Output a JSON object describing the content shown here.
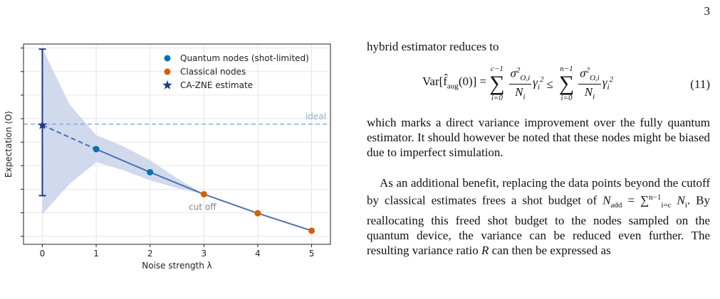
{
  "page": {
    "number": "3"
  },
  "figure": {
    "chart_data": {
      "type": "line",
      "xlabel": "Noise strength λ",
      "ylabel": "Expectation ⟨O⟩",
      "xlim": [
        -0.35,
        5.35
      ],
      "ylim": [
        0.0,
        1.0
      ],
      "x_ticks": [
        0,
        1,
        2,
        3,
        4,
        5
      ],
      "grid": true,
      "legend": "top-right",
      "ideal": {
        "label": "ideal",
        "y": 0.6
      },
      "cutoff": {
        "label": "cut off",
        "x": 3
      },
      "series": [
        {
          "name": "Quantum nodes (shot-limited)",
          "color": "#0072b2",
          "x": [
            1,
            2
          ],
          "y": [
            0.475,
            0.36
          ]
        },
        {
          "name": "Classical nodes",
          "color": "#d55e00",
          "x": [
            3,
            4,
            5
          ],
          "y": [
            0.25,
            0.155,
            0.068
          ]
        },
        {
          "name": "CA-ZNE estimate",
          "color": "#1f3b8c",
          "x": [
            0
          ],
          "y": [
            0.595
          ],
          "error": 0.345
        }
      ],
      "fit_line": {
        "x": [
          0,
          1,
          2,
          3,
          4,
          5
        ],
        "y": [
          0.595,
          0.475,
          0.36,
          0.25,
          0.155,
          0.068
        ]
      },
      "band": {
        "x": [
          0,
          0.5,
          1,
          1.5,
          2,
          2.5,
          3,
          4,
          5
        ],
        "upper": [
          0.98,
          0.7,
          0.545,
          0.49,
          0.42,
          0.33,
          0.25,
          0.155,
          0.068
        ],
        "lower": [
          0.15,
          0.3,
          0.41,
          0.37,
          0.32,
          0.28,
          0.25,
          0.155,
          0.068
        ]
      },
      "colors": {
        "fit": "#4c72b0",
        "band": "#c9d4ea",
        "ideal": "#7fb3d8",
        "grid": "#e6e6e6"
      }
    }
  },
  "text": {
    "para1_intro": "hybrid estimator reduces to",
    "eq11": {
      "lhs": "Var[f̂",
      "lhs_sub": "aug",
      "lhs_tail": "(0)] =",
      "sum1_upper": "c−1",
      "sum1_lower": "i=0",
      "frac_num": "σ",
      "frac_num_sup": "2",
      "frac_num_sub": "O,i",
      "frac_den": "N",
      "frac_den_sub": "i",
      "gamma": "γ",
      "gamma_sub": "i",
      "gamma_sup": "2",
      "leq": "≤",
      "sum2_upper": "n−1",
      "sum2_lower": "i=0",
      "number": "(11)"
    },
    "para1_rest": "which marks a direct variance improvement over the fully quantum estimator. It should however be noted that these nodes might be biased due to imperfect simulation.",
    "para2_a": "As an additional benefit, replacing the data points beyond the cutoff by classical estimates frees a shot budget of",
    "para2_nadd": "N",
    "para2_nadd_sub": "add",
    "para2_eq": " = ∑",
    "para2_eq_sub": "i=c",
    "para2_eq_sup": "n−1",
    "para2_ni": "N",
    "para2_ni_sub": "i",
    "para2_b": ". By reallocating this freed shot budget to the nodes sampled on the quantum device, the variance can be reduced even further. The resulting variance ratio",
    "para2_R": "R",
    "para2_c": "can then be expressed as"
  }
}
